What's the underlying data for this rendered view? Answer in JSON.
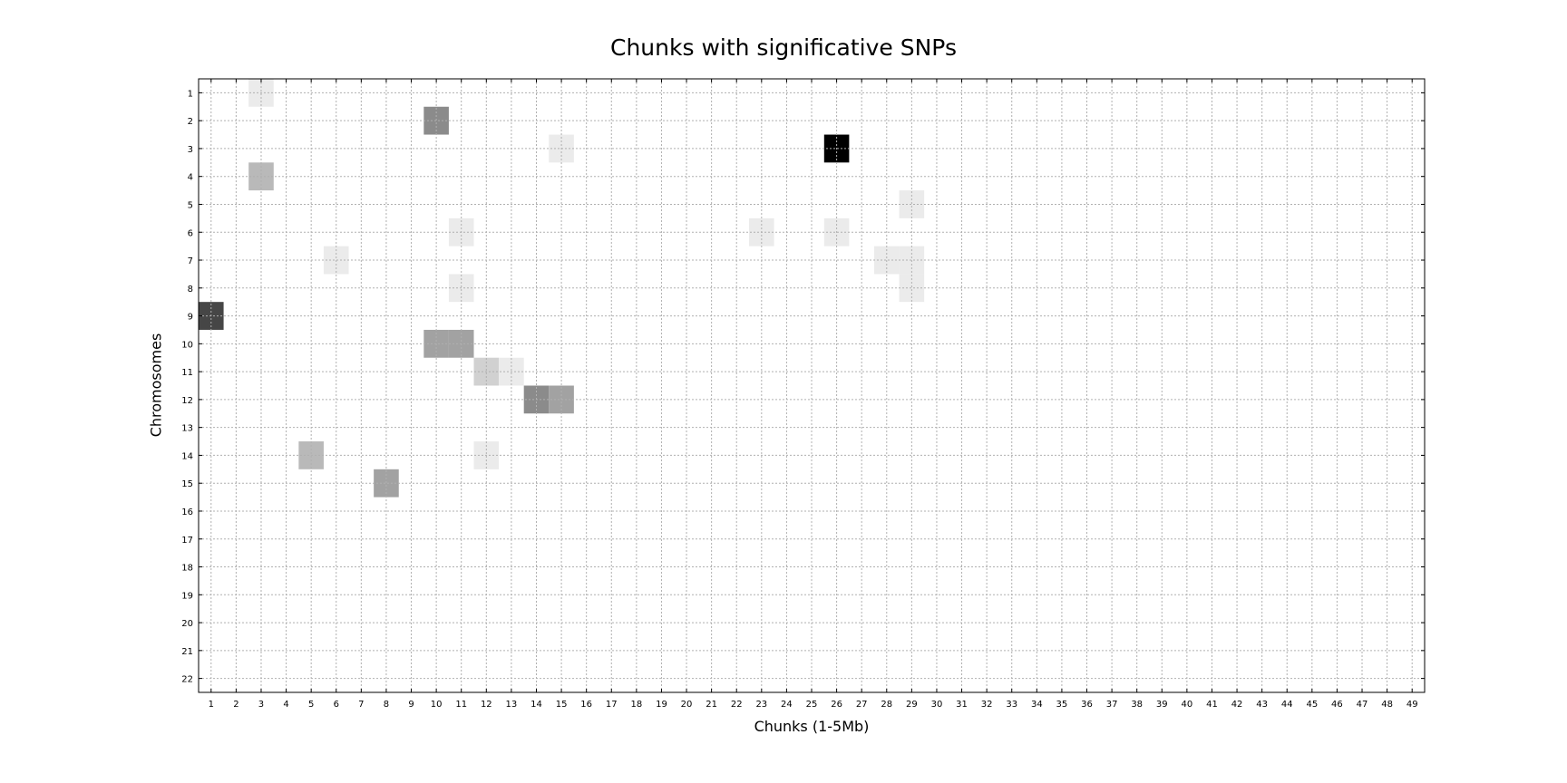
{
  "chart_data": {
    "type": "heatmap",
    "title": "Chunks with significative SNPs",
    "xlabel": "Chunks (1-5Mb)",
    "ylabel": "Chromosomes",
    "x_ticks": [
      "1",
      "2",
      "3",
      "4",
      "5",
      "6",
      "7",
      "8",
      "9",
      "10",
      "11",
      "12",
      "13",
      "14",
      "15",
      "16",
      "17",
      "18",
      "19",
      "20",
      "21",
      "22",
      "23",
      "24",
      "25",
      "26",
      "27",
      "28",
      "29",
      "30",
      "31",
      "32",
      "33",
      "34",
      "35",
      "36",
      "37",
      "38",
      "39",
      "40",
      "41",
      "42",
      "43",
      "44",
      "45",
      "46",
      "47",
      "48",
      "49"
    ],
    "y_ticks": [
      "1",
      "2",
      "3",
      "4",
      "5",
      "6",
      "7",
      "8",
      "9",
      "10",
      "11",
      "12",
      "13",
      "14",
      "15",
      "16",
      "17",
      "18",
      "19",
      "20",
      "21",
      "22"
    ],
    "xlim": [
      0.5,
      49.5
    ],
    "ylim": [
      0.5,
      22.5
    ],
    "y_axis_inverted": true,
    "grid": true,
    "colormap": "grayscale (white = 0, black = max)",
    "cells": [
      {
        "x": 3,
        "y": 1,
        "value": 1
      },
      {
        "x": 10,
        "y": 2,
        "value": 5
      },
      {
        "x": 15,
        "y": 3,
        "value": 1
      },
      {
        "x": 26,
        "y": 3,
        "value": 11
      },
      {
        "x": 3,
        "y": 4,
        "value": 3
      },
      {
        "x": 29,
        "y": 5,
        "value": 1
      },
      {
        "x": 11,
        "y": 6,
        "value": 1
      },
      {
        "x": 23,
        "y": 6,
        "value": 1
      },
      {
        "x": 26,
        "y": 6,
        "value": 1
      },
      {
        "x": 6,
        "y": 7,
        "value": 1
      },
      {
        "x": 28,
        "y": 7,
        "value": 1
      },
      {
        "x": 29,
        "y": 7,
        "value": 1
      },
      {
        "x": 11,
        "y": 8,
        "value": 1
      },
      {
        "x": 29,
        "y": 8,
        "value": 1
      },
      {
        "x": 1,
        "y": 9,
        "value": 8
      },
      {
        "x": 10,
        "y": 10,
        "value": 4
      },
      {
        "x": 11,
        "y": 10,
        "value": 4
      },
      {
        "x": 12,
        "y": 11,
        "value": 2
      },
      {
        "x": 13,
        "y": 11,
        "value": 1
      },
      {
        "x": 14,
        "y": 12,
        "value": 5
      },
      {
        "x": 15,
        "y": 12,
        "value": 4
      },
      {
        "x": 5,
        "y": 14,
        "value": 3
      },
      {
        "x": 12,
        "y": 14,
        "value": 1
      },
      {
        "x": 8,
        "y": 15,
        "value": 4
      }
    ],
    "vmax": 11
  }
}
